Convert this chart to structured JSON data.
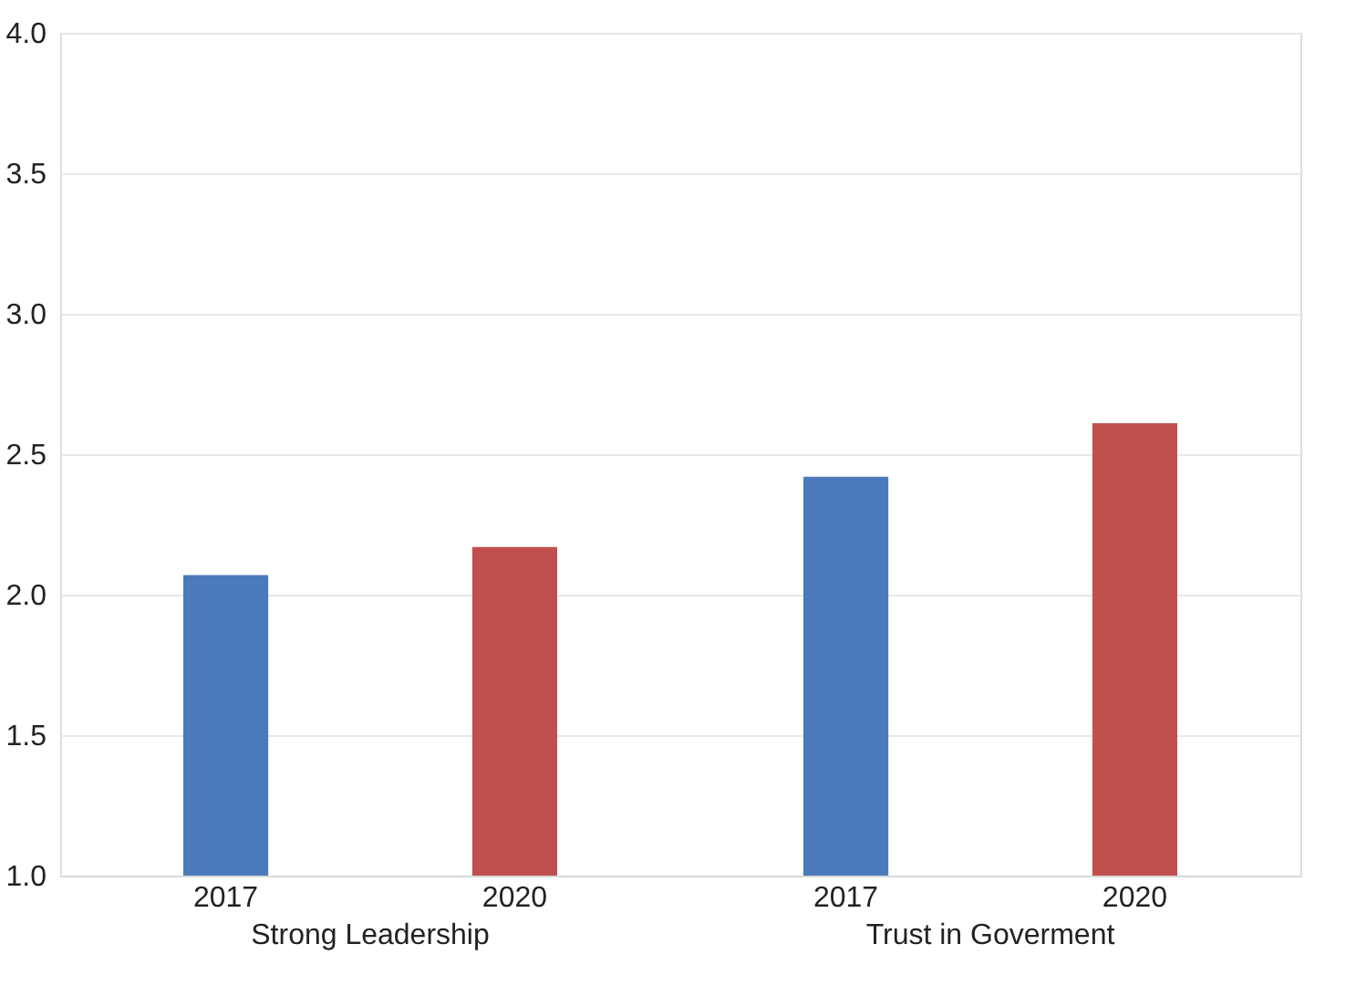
{
  "chart_data": {
    "type": "bar",
    "categories": [
      "Strong Leadership",
      "Trust in Goverment"
    ],
    "series": [
      {
        "name": "2017",
        "color": "#4a7ab9",
        "values": [
          2.07,
          2.42
        ]
      },
      {
        "name": "2020",
        "color": "#c0504d",
        "values": [
          2.17,
          2.61
        ]
      }
    ],
    "ylim": [
      1.0,
      4.0
    ],
    "yticks": [
      {
        "value": 1.0,
        "label": "1.0"
      },
      {
        "value": 1.5,
        "label": "1.5"
      },
      {
        "value": 2.0,
        "label": "2.0"
      },
      {
        "value": 2.5,
        "label": "2.5"
      },
      {
        "value": 3.0,
        "label": "3.0"
      },
      {
        "value": 3.5,
        "label": "3.5"
      },
      {
        "value": 4.0,
        "label": "4.0"
      }
    ],
    "grid": "y"
  }
}
